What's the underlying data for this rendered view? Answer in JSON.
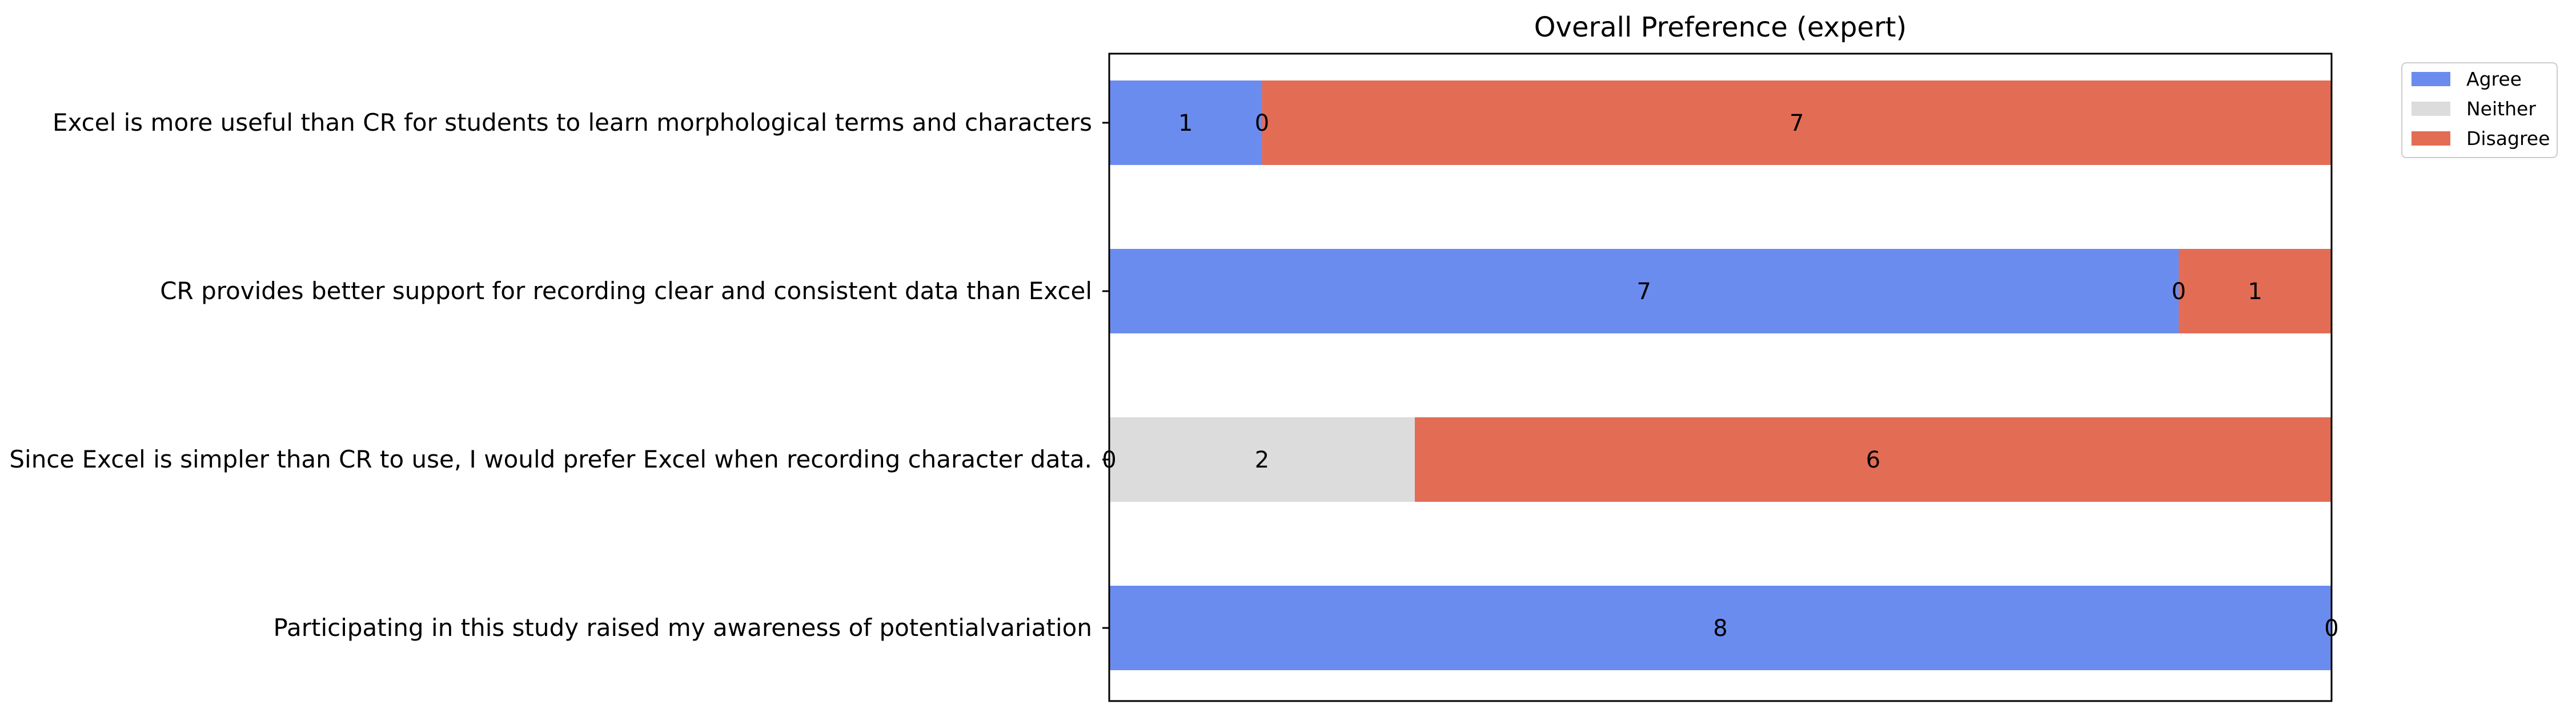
{
  "chart_data": {
    "type": "bar",
    "orientation": "horizontal",
    "stacked": true,
    "title": "Overall Preference (expert)",
    "xlabel": "",
    "ylabel": "",
    "xlim": [
      0,
      8
    ],
    "grid": false,
    "show_x_ticks": false,
    "categories": [
      "Excel is more useful than CR  for students to learn morphological terms and characters",
      "CR provides better support for recording clear and consistent data than Excel",
      "Since Excel is simpler than CR to use, I would prefer Excel when recording character data.",
      "Participating in this study raised my awareness of potentialvariation"
    ],
    "series": [
      {
        "name": "Agree",
        "color": "#6b8cef",
        "values": [
          1,
          7,
          0,
          8
        ]
      },
      {
        "name": "Neither",
        "color": "#dcdcdc",
        "values": [
          0,
          0,
          2,
          0
        ]
      },
      {
        "name": "Disagree",
        "color": "#e36c55",
        "values": [
          7,
          1,
          6,
          0
        ]
      }
    ],
    "data_labels": [
      [
        "1",
        "0",
        "7"
      ],
      [
        "7",
        "0",
        "1"
      ],
      [
        "0",
        "2",
        "6"
      ],
      [
        "8",
        "",
        "0"
      ]
    ],
    "legend": {
      "placement": "outside-top-right",
      "entries": [
        "Agree",
        "Neither",
        "Disagree"
      ]
    }
  }
}
